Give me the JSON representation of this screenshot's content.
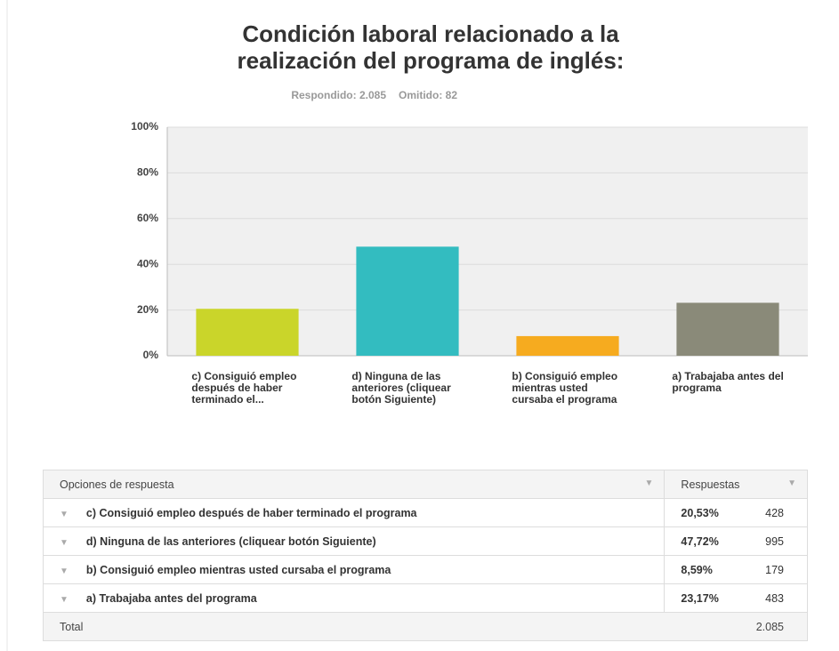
{
  "chart_data": {
    "type": "bar",
    "title": [
      "Condición laboral relacionado a la",
      "realización del programa de inglés:"
    ],
    "subtitle": [
      "Respondido: 2.085",
      "Omitido: 82"
    ],
    "categories": [
      "c) Consiguió empleo después de haber terminado el...",
      "d) Ninguna de las anteriores (cliquear botón Siguiente)",
      "b) Consiguió empleo mientras usted cursaba el programa",
      "a) Trabajaba antes del programa"
    ],
    "values": [
      20.53,
      47.72,
      8.59,
      23.17
    ],
    "colors": [
      "#cad52a",
      "#33bcc0",
      "#f6ab1f",
      "#8a8a79"
    ],
    "ylim": [
      0,
      100
    ],
    "yticks": [
      {
        "value": 0,
        "label": "0%"
      },
      {
        "value": 20,
        "label": "20%"
      },
      {
        "value": 40,
        "label": "40%"
      },
      {
        "value": 60,
        "label": "60%"
      },
      {
        "value": 80,
        "label": "80%"
      },
      {
        "value": 100,
        "label": "100%"
      }
    ],
    "grid": true
  },
  "table": {
    "header": [
      "Opciones de respuesta",
      "Respuestas"
    ],
    "rows": [
      [
        "c) Consiguió empleo después de haber terminado el programa",
        "20,53%",
        "428"
      ],
      [
        "d) Ninguna de las anteriores (cliquear botón Siguiente)",
        "47,72%",
        "995"
      ],
      [
        "b) Consiguió empleo mientras usted cursaba el programa",
        "8,59%",
        "179"
      ],
      [
        "a) Trabajaba antes del programa",
        "23,17%",
        "483"
      ]
    ],
    "total": [
      "Total",
      "2.085"
    ]
  }
}
